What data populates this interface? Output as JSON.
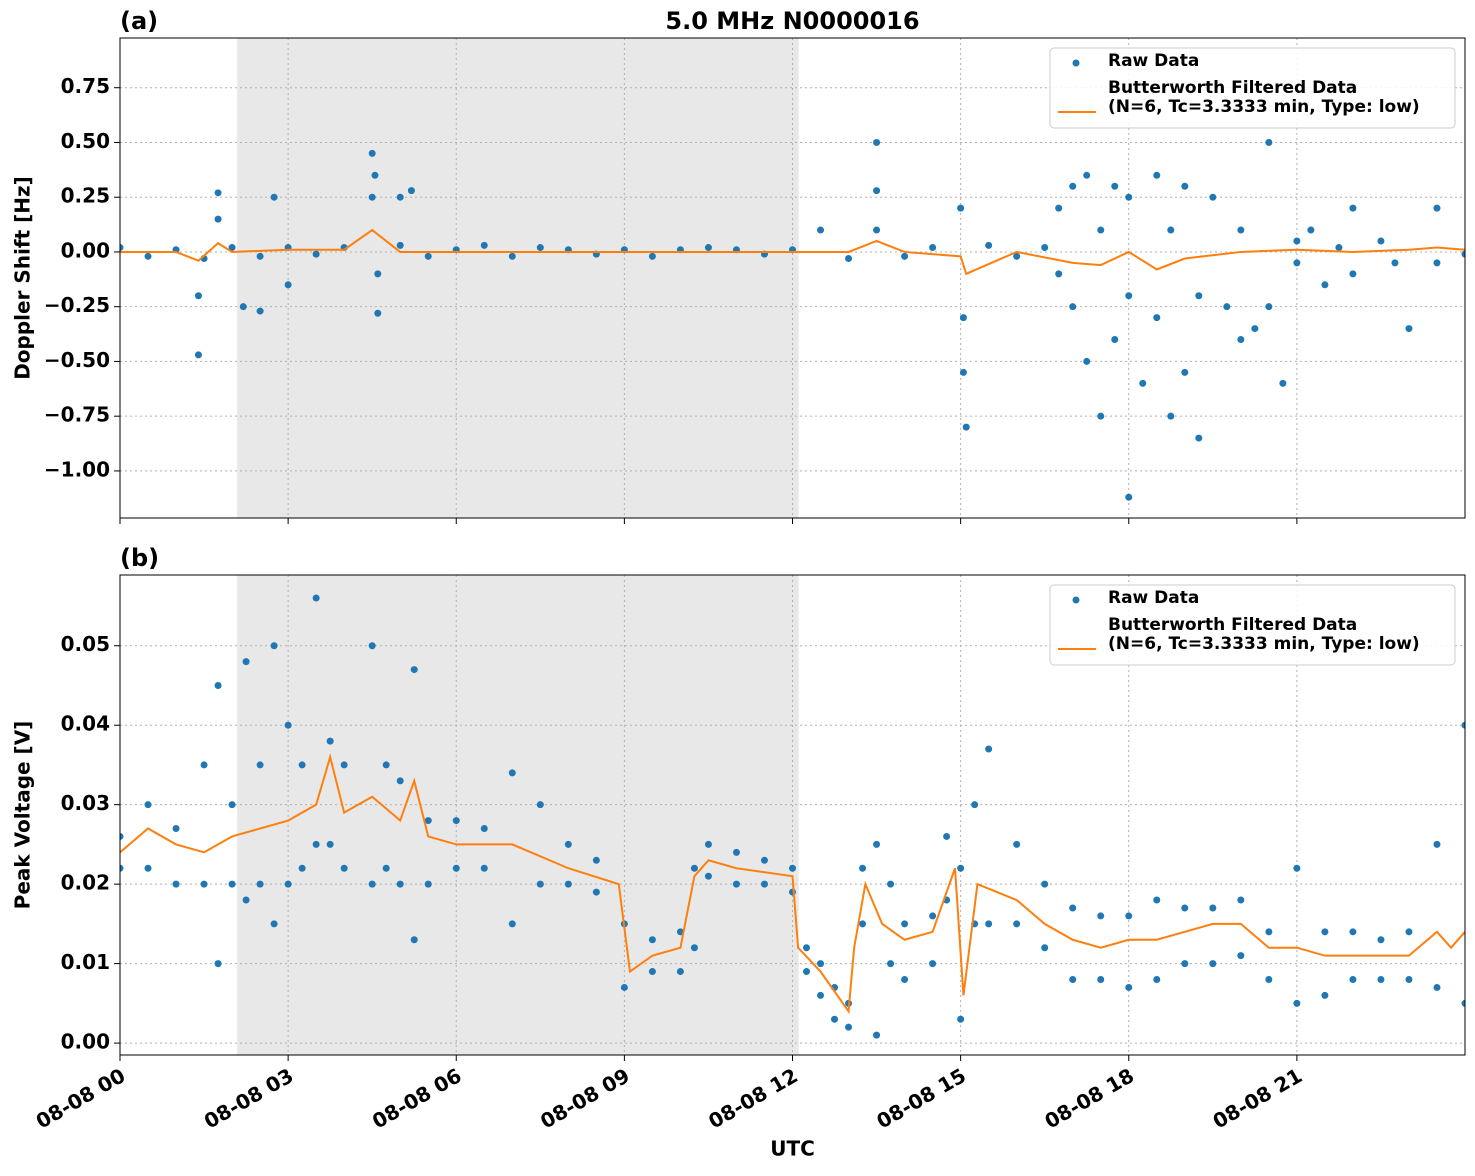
{
  "chart_data": [
    {
      "type": "scatter",
      "panel_label": "(a)",
      "title": "5.0 MHz N0000016",
      "ylabel": "Doppler Shift [Hz]",
      "xlim": [
        0,
        24
      ],
      "xticks": [
        0,
        3,
        6,
        9,
        12,
        15,
        18,
        21
      ],
      "ylim": [
        -1.215,
        0.977
      ],
      "yticks": [
        {
          "value": 0.75,
          "label": "0.75"
        },
        {
          "value": 0.5,
          "label": "0.50"
        },
        {
          "value": 0.25,
          "label": "0.25"
        },
        {
          "value": 0,
          "label": "0.00"
        },
        {
          "value": -0.25,
          "label": "−0.25"
        },
        {
          "value": -0.5,
          "label": "−0.50"
        },
        {
          "value": -0.75,
          "label": "−0.75"
        },
        {
          "value": -1,
          "label": "−1.00"
        }
      ],
      "grid": true,
      "legend": "upper right",
      "shaded": [
        2.09,
        12.11
      ],
      "shade_color": "#e8e8e8",
      "series": [
        {
          "name": "Raw Data",
          "kind": "points",
          "color": "#1f77b4",
          "x": [
            0,
            0.5,
            1,
            1.4,
            1.4,
            1.5,
            1.75,
            1.75,
            2,
            2.2,
            2.5,
            2.5,
            2.75,
            3,
            3,
            3.5,
            4,
            4.5,
            4.5,
            4.55,
            4.6,
            4.6,
            5,
            5,
            5.2,
            5.5,
            6,
            6.5,
            7,
            7.5,
            8,
            8.5,
            9,
            9.5,
            10,
            10.5,
            11,
            11.5,
            12,
            12.5,
            13,
            13.5,
            13.5,
            13.5,
            14,
            14.5,
            15,
            15.05,
            15.05,
            15.1,
            15.5,
            16,
            16.5,
            16.75,
            16.75,
            17,
            17,
            17.25,
            17.25,
            17.5,
            17.5,
            17.75,
            17.75,
            18,
            18,
            18,
            18.25,
            18.5,
            18.5,
            18.75,
            18.75,
            19,
            19,
            19.25,
            19.25,
            19.5,
            19.75,
            20,
            20,
            20.25,
            20.5,
            20.5,
            20.75,
            21,
            21,
            21.25,
            21.5,
            21.75,
            22,
            22,
            22.5,
            22.75,
            23,
            23.5,
            23.5,
            24
          ],
          "values": [
            0.02,
            -0.02,
            0.01,
            -0.2,
            -0.47,
            -0.03,
            0.27,
            0.15,
            0.02,
            -0.25,
            -0.02,
            -0.27,
            0.25,
            0.02,
            -0.15,
            -0.01,
            0.02,
            0.25,
            0.45,
            0.35,
            -0.28,
            -0.1,
            0.25,
            0.03,
            0.28,
            -0.02,
            0.01,
            0.03,
            -0.02,
            0.02,
            0.01,
            -0.01,
            0.01,
            -0.02,
            0.01,
            0.02,
            0.01,
            -0.01,
            0.01,
            0.1,
            -0.03,
            0.5,
            0.28,
            0.1,
            -0.02,
            0.02,
            0.2,
            -0.3,
            -0.55,
            -0.8,
            0.03,
            -0.02,
            0.02,
            0.2,
            -0.1,
            0.3,
            -0.25,
            -0.5,
            0.35,
            -0.75,
            0.1,
            -0.4,
            0.3,
            -1.12,
            -0.2,
            0.25,
            -0.6,
            0.35,
            -0.3,
            -0.75,
            0.1,
            -0.55,
            0.3,
            -0.85,
            -0.2,
            0.25,
            -0.25,
            0.1,
            -0.4,
            -0.35,
            0.5,
            -0.25,
            -0.6,
            -0.05,
            0.05,
            0.1,
            -0.15,
            0.02,
            -0.1,
            0.2,
            0.05,
            -0.05,
            -0.35,
            0.2,
            -0.05,
            -0.01
          ]
        },
        {
          "name": "Butterworth Filtered Data\n(N=6, Tc=3.3333 min, Type: low)",
          "kind": "line",
          "color": "#ff7f0e",
          "x": [
            0,
            1,
            1.4,
            1.75,
            2,
            3,
            4,
            4.5,
            5,
            6,
            7,
            8,
            9,
            10,
            11,
            12,
            13,
            13.5,
            14,
            15,
            15.1,
            16,
            17,
            17.5,
            18,
            18.5,
            19,
            20,
            21,
            22,
            23,
            23.5,
            24
          ],
          "values": [
            0,
            0.0,
            -0.04,
            0.04,
            0,
            0.01,
            0.01,
            0.1,
            0,
            0,
            0,
            0,
            0,
            0,
            0,
            0,
            0,
            0.05,
            0,
            -0.02,
            -0.1,
            0,
            -0.05,
            -0.06,
            0,
            -0.08,
            -0.03,
            0,
            0.01,
            0,
            0.01,
            0.02,
            0.01
          ]
        }
      ]
    },
    {
      "type": "scatter",
      "panel_label": "(b)",
      "ylabel": "Peak Voltage [V]",
      "xlabel": "UTC",
      "xlim": [
        0,
        24
      ],
      "xticks": [
        {
          "value": 0,
          "label": "08-08 00"
        },
        {
          "value": 3,
          "label": "08-08 03"
        },
        {
          "value": 6,
          "label": "08-08 06"
        },
        {
          "value": 9,
          "label": "08-08 09"
        },
        {
          "value": 12,
          "label": "08-08 12"
        },
        {
          "value": 15,
          "label": "08-08 15"
        },
        {
          "value": 18,
          "label": "08-08 18"
        },
        {
          "value": 21,
          "label": "08-08 21"
        }
      ],
      "ylim": [
        -0.0015,
        0.0589
      ],
      "yticks": [
        {
          "value": 0,
          "label": "0.00"
        },
        0.01,
        0.02,
        0.03,
        0.04,
        0.05
      ],
      "grid": true,
      "legend": "upper right",
      "shaded": [
        2.09,
        12.11
      ],
      "shade_color": "#e8e8e8",
      "series": [
        {
          "name": "Raw Data",
          "kind": "points",
          "color": "#1f77b4",
          "x": [
            0,
            0,
            0.5,
            0.5,
            1,
            1,
            1.5,
            1.5,
            1.75,
            1.75,
            2,
            2,
            2.25,
            2.25,
            2.5,
            2.5,
            2.75,
            2.75,
            3,
            3,
            3.25,
            3.25,
            3.5,
            3.5,
            3.75,
            3.75,
            4,
            4,
            4.5,
            4.5,
            4.75,
            4.75,
            5,
            5,
            5.25,
            5.25,
            5.5,
            5.5,
            6,
            6,
            6.5,
            6.5,
            7,
            7,
            7.5,
            7.5,
            8,
            8,
            8.5,
            8.5,
            9,
            9,
            9.5,
            9.5,
            10,
            10,
            10.25,
            10.25,
            10.5,
            10.5,
            11,
            11,
            11.5,
            11.5,
            12,
            12,
            12.25,
            12.25,
            12.5,
            12.5,
            12.75,
            12.75,
            13,
            13,
            13.25,
            13.25,
            13.5,
            13.5,
            13.75,
            13.75,
            14,
            14,
            14.5,
            14.5,
            14.75,
            14.75,
            15,
            15,
            15.25,
            15.25,
            15.5,
            15.5,
            16,
            16,
            16.5,
            16.5,
            17,
            17,
            17.5,
            17.5,
            18,
            18,
            18.5,
            18.5,
            19,
            19,
            19.5,
            19.5,
            20,
            20,
            20.5,
            20.5,
            21,
            21,
            21.5,
            21.5,
            22,
            22,
            22.5,
            22.5,
            23,
            23,
            23.5,
            23.5,
            24,
            24
          ],
          "values": [
            0.026,
            0.022,
            0.03,
            0.022,
            0.027,
            0.02,
            0.035,
            0.02,
            0.045,
            0.01,
            0.03,
            0.02,
            0.048,
            0.018,
            0.035,
            0.02,
            0.05,
            0.015,
            0.04,
            0.02,
            0.035,
            0.022,
            0.056,
            0.025,
            0.038,
            0.025,
            0.035,
            0.022,
            0.05,
            0.02,
            0.035,
            0.022,
            0.033,
            0.02,
            0.047,
            0.013,
            0.028,
            0.02,
            0.028,
            0.022,
            0.027,
            0.022,
            0.034,
            0.015,
            0.03,
            0.02,
            0.025,
            0.02,
            0.023,
            0.019,
            0.015,
            0.007,
            0.013,
            0.009,
            0.014,
            0.009,
            0.022,
            0.012,
            0.025,
            0.021,
            0.024,
            0.02,
            0.023,
            0.02,
            0.022,
            0.019,
            0.012,
            0.009,
            0.01,
            0.006,
            0.007,
            0.003,
            0.005,
            0.002,
            0.022,
            0.015,
            0.025,
            0.001,
            0.02,
            0.01,
            0.015,
            0.008,
            0.016,
            0.01,
            0.026,
            0.018,
            0.022,
            0.003,
            0.03,
            0.015,
            0.037,
            0.015,
            0.025,
            0.015,
            0.02,
            0.012,
            0.017,
            0.008,
            0.016,
            0.008,
            0.016,
            0.007,
            0.018,
            0.008,
            0.017,
            0.01,
            0.017,
            0.01,
            0.018,
            0.011,
            0.014,
            0.008,
            0.022,
            0.005,
            0.014,
            0.006,
            0.014,
            0.008,
            0.013,
            0.008,
            0.014,
            0.008,
            0.025,
            0.007,
            0.04,
            0.005
          ]
        },
        {
          "name": "Butterworth Filtered Data\n(N=6, Tc=3.3333 min, Type: low)",
          "kind": "line",
          "color": "#ff7f0e",
          "x": [
            0,
            0.5,
            1,
            1.5,
            2,
            2.5,
            3,
            3.5,
            3.75,
            4,
            4.5,
            5,
            5.25,
            5.5,
            6,
            7,
            8,
            8.9,
            9.1,
            9.5,
            10,
            10.25,
            10.5,
            11,
            12,
            12.1,
            12.5,
            13,
            13.1,
            13.3,
            13.6,
            14,
            14.5,
            14.9,
            15.05,
            15.3,
            16,
            16.5,
            17,
            17.5,
            18,
            18.5,
            19,
            19.5,
            20,
            20.5,
            21,
            21.5,
            22,
            22.5,
            23,
            23.5,
            23.75,
            24
          ],
          "values": [
            0.024,
            0.027,
            0.025,
            0.024,
            0.026,
            0.027,
            0.028,
            0.03,
            0.036,
            0.029,
            0.031,
            0.028,
            0.033,
            0.026,
            0.025,
            0.025,
            0.022,
            0.02,
            0.009,
            0.011,
            0.012,
            0.021,
            0.023,
            0.022,
            0.021,
            0.012,
            0.009,
            0.004,
            0.012,
            0.02,
            0.015,
            0.013,
            0.014,
            0.022,
            0.006,
            0.02,
            0.018,
            0.015,
            0.013,
            0.012,
            0.013,
            0.013,
            0.014,
            0.015,
            0.015,
            0.012,
            0.012,
            0.011,
            0.011,
            0.011,
            0.011,
            0.014,
            0.012,
            0.014
          ]
        }
      ]
    }
  ]
}
